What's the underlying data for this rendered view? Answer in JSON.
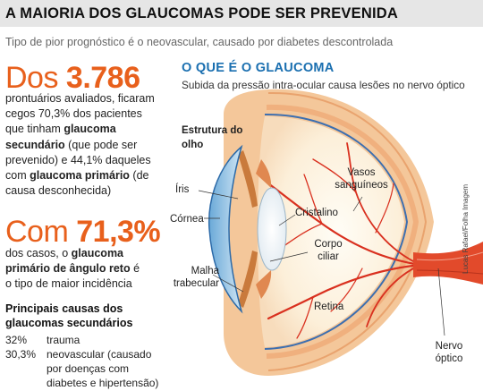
{
  "header": {
    "headline": "A MAIORIA DOS GLAUCOMAS PODE SER PREVENIDA",
    "subheadline": "Tipo de pior prognóstico é o neovascular, causado por diabetes descontrolada"
  },
  "stat1": {
    "prefix": "Dos",
    "number": "3.786",
    "text_a": "prontuários avaliados, ficaram cegos 70,3% dos pacientes que tinham ",
    "bold_a": "glaucoma secundário",
    "text_b": " (que pode ser prevenido) e 44,1% daqueles com ",
    "bold_b": "glaucoma primário",
    "text_c": " (de causa desconhecida)"
  },
  "stat2": {
    "prefix": "Com",
    "number": "71,3%",
    "text_a": "dos casos, o ",
    "bold_a": "glaucoma primário de ângulo reto",
    "text_b": " é o tipo de maior incidência"
  },
  "causes": {
    "title": "Principais causas dos glaucomas secundários",
    "items": [
      {
        "percent": "32%",
        "label": "trauma"
      },
      {
        "percent": "30,3%",
        "label": "neovascular (causado por doenças com diabetes e hipertensão)"
      }
    ]
  },
  "diagram": {
    "title": "O QUE É O GLAUCOMA",
    "subtitle": "Subida da pressão intra-ocular causa lesões no nervo óptico",
    "labels": {
      "estrutura": "Estrutura do olho",
      "iris": "Íris",
      "cornea": "Córnea",
      "malha": "Malha trabecular",
      "cristalino": "Cristalino",
      "corpo_ciliar": "Corpo ciliar",
      "vasos": "Vasos sanguíneos",
      "retina": "Retina",
      "nervo": "Nervo óptico"
    },
    "credit": "Lucas Rafael/Folha Imagem",
    "colors": {
      "accent": "#e8601c",
      "title_blue": "#1a6fb0",
      "sclera": "#f6c99a",
      "vessel": "#d9301f"
    }
  }
}
